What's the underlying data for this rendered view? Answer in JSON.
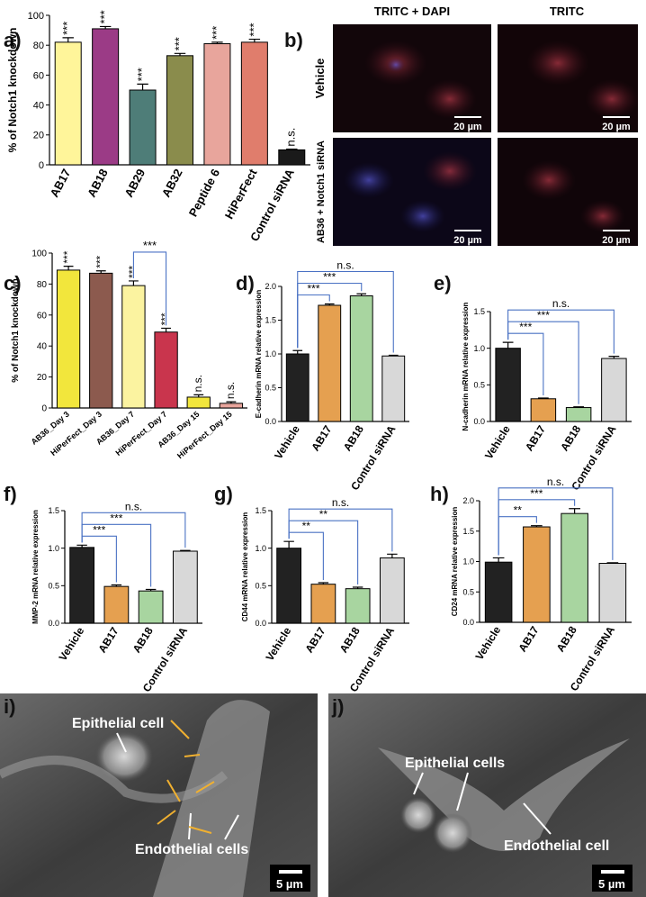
{
  "chart_data": [
    {
      "type": "bar",
      "panel": "a)",
      "ylabel": "% of Notch1 knockdown",
      "categories": [
        "AB17",
        "AB18",
        "AB29",
        "AB32",
        "Peptide 6",
        "HiPerFect",
        "Control siRNA"
      ],
      "values": [
        82,
        91,
        50,
        73,
        81,
        82,
        10
      ],
      "errors": [
        3,
        1.5,
        4,
        1.5,
        1,
        2,
        0.5
      ],
      "colors": [
        "#fff59a",
        "#9b3b86",
        "#4e7d78",
        "#8a8c4c",
        "#e8a59c",
        "#e07d6c",
        "#1a1a1a"
      ],
      "significance": [
        "***",
        "***",
        "***",
        "***",
        "***",
        "***",
        "n.s."
      ],
      "ylim": [
        0,
        100
      ],
      "yticks": [
        0,
        20,
        40,
        60,
        80,
        100
      ]
    },
    {
      "type": "bar",
      "panel": "c)",
      "ylabel": "% of Notch1 knockdown",
      "categories": [
        "AB36_Day 3",
        "HiPerFect_Day 3",
        "AB36_Day 7",
        "HiPerFect_Day 7",
        "AB36_Day 15",
        "HiPerFect_Day 15"
      ],
      "values": [
        89,
        87,
        79,
        49,
        7,
        3
      ],
      "errors": [
        2.5,
        1.5,
        3,
        2.5,
        1.5,
        1
      ],
      "colors": [
        "#f2e63c",
        "#8c5a4e",
        "#fbf3a0",
        "#c9354d",
        "#f2e63c",
        "#e8a59c"
      ],
      "significance": [
        "***",
        "***",
        "***",
        "***",
        "n.s.",
        "n.s."
      ],
      "comparisons": [
        {
          "from": 2,
          "to": 3,
          "label": "***"
        }
      ],
      "bracket_color": "#4a72c4",
      "ylim": [
        0,
        100
      ],
      "yticks": [
        0,
        20,
        40,
        60,
        80,
        100
      ]
    },
    {
      "type": "bar",
      "panel": "d)",
      "ylabel": "E-cadherin mRNA relative expression",
      "categories": [
        "Vehicle",
        "AB17",
        "AB18",
        "Control siRNA"
      ],
      "values": [
        1.0,
        1.72,
        1.86,
        0.97
      ],
      "errors": [
        0.05,
        0.02,
        0.03,
        0.01
      ],
      "colors": [
        "#222222",
        "#e5a050",
        "#a8d5a0",
        "#d8d8d8"
      ],
      "comparisons": [
        {
          "from": 0,
          "to": 1,
          "label": "***"
        },
        {
          "from": 0,
          "to": 2,
          "label": "***"
        },
        {
          "from": 0,
          "to": 3,
          "label": "n.s."
        }
      ],
      "bracket_color": "#4a72c4",
      "ylim": [
        0,
        2
      ],
      "yticks": [
        {
          "value": 0,
          "label": "0.0"
        },
        {
          "value": 0.5,
          "label": "0.5"
        },
        {
          "value": 1,
          "label": "1.0"
        },
        {
          "value": 1.5,
          "label": "1.5"
        },
        {
          "value": 2,
          "label": "2.0"
        }
      ]
    },
    {
      "type": "bar",
      "panel": "e)",
      "ylabel": "N-cadherin mRNA relative expression",
      "categories": [
        "Vehicle",
        "AB17",
        "AB18",
        "Control siRNA"
      ],
      "values": [
        1.0,
        0.31,
        0.19,
        0.86
      ],
      "errors": [
        0.08,
        0.01,
        0.01,
        0.03
      ],
      "colors": [
        "#222222",
        "#e5a050",
        "#a8d5a0",
        "#d8d8d8"
      ],
      "comparisons": [
        {
          "from": 0,
          "to": 1,
          "label": "***"
        },
        {
          "from": 0,
          "to": 2,
          "label": "***"
        },
        {
          "from": 0,
          "to": 3,
          "label": "n.s."
        }
      ],
      "bracket_color": "#4a72c4",
      "ylim": [
        0,
        1.5
      ],
      "yticks": [
        {
          "value": 0,
          "label": "0.0"
        },
        {
          "value": 0.5,
          "label": "0.5"
        },
        {
          "value": 1,
          "label": "1.0"
        },
        {
          "value": 1.5,
          "label": "1.5"
        }
      ]
    },
    {
      "type": "bar",
      "panel": "f)",
      "ylabel": "MMP-2 mRNA relative expression",
      "categories": [
        "Vehicle",
        "AB17",
        "AB18",
        "Control siRNA"
      ],
      "values": [
        1.01,
        0.49,
        0.43,
        0.96
      ],
      "errors": [
        0.03,
        0.02,
        0.02,
        0.01
      ],
      "colors": [
        "#222222",
        "#e5a050",
        "#a8d5a0",
        "#d8d8d8"
      ],
      "comparisons": [
        {
          "from": 0,
          "to": 1,
          "label": "***"
        },
        {
          "from": 0,
          "to": 2,
          "label": "***"
        },
        {
          "from": 0,
          "to": 3,
          "label": "n.s."
        }
      ],
      "bracket_color": "#4a72c4",
      "ylim": [
        0,
        1.5
      ],
      "yticks": [
        {
          "value": 0,
          "label": "0.0"
        },
        {
          "value": 0.5,
          "label": "0.5"
        },
        {
          "value": 1,
          "label": "1.0"
        },
        {
          "value": 1.5,
          "label": "1.5"
        }
      ]
    },
    {
      "type": "bar",
      "panel": "g)",
      "ylabel": "CD44 mRNA relative expression",
      "categories": [
        "Vehicle",
        "AB17",
        "AB18",
        "Control siRNA"
      ],
      "values": [
        1.0,
        0.52,
        0.46,
        0.87
      ],
      "errors": [
        0.09,
        0.02,
        0.02,
        0.05
      ],
      "colors": [
        "#222222",
        "#e5a050",
        "#a8d5a0",
        "#d8d8d8"
      ],
      "comparisons": [
        {
          "from": 0,
          "to": 1,
          "label": "**"
        },
        {
          "from": 0,
          "to": 2,
          "label": "**"
        },
        {
          "from": 0,
          "to": 3,
          "label": "n.s."
        }
      ],
      "bracket_color": "#4a72c4",
      "ylim": [
        0,
        1.5
      ],
      "yticks": [
        {
          "value": 0,
          "label": "0.0"
        },
        {
          "value": 0.5,
          "label": "0.5"
        },
        {
          "value": 1,
          "label": "1.0"
        },
        {
          "value": 1.5,
          "label": "1.5"
        }
      ]
    },
    {
      "type": "bar",
      "panel": "h)",
      "ylabel": "CD24 mRNA relative expression",
      "categories": [
        "Vehicle",
        "AB17",
        "AB18",
        "Control siRNA"
      ],
      "values": [
        0.99,
        1.57,
        1.79,
        0.97
      ],
      "errors": [
        0.07,
        0.02,
        0.08,
        0.01
      ],
      "colors": [
        "#222222",
        "#e5a050",
        "#a8d5a0",
        "#d8d8d8"
      ],
      "comparisons": [
        {
          "from": 0,
          "to": 1,
          "label": "**"
        },
        {
          "from": 0,
          "to": 2,
          "label": "***"
        },
        {
          "from": 0,
          "to": 3,
          "label": "n.s."
        }
      ],
      "bracket_color": "#4a72c4",
      "ylim": [
        0,
        2
      ],
      "yticks": [
        {
          "value": 0,
          "label": "0.0"
        },
        {
          "value": 0.5,
          "label": "0.5"
        },
        {
          "value": 1,
          "label": "1.0"
        },
        {
          "value": 1.5,
          "label": "1.5"
        },
        {
          "value": 2,
          "label": "2.0"
        }
      ]
    }
  ],
  "micrographs": {
    "panel": "b)",
    "columns": [
      "TRITC + DAPI",
      "TRITC"
    ],
    "rows": [
      "Vehicle",
      "AB36 + Notch1 siRNA"
    ],
    "scale_bar": "20 µm"
  },
  "sem": [
    {
      "panel": "i)",
      "labels": [
        "Epithelial cell",
        "Endothelial cells"
      ],
      "scale_bar": "5 µm"
    },
    {
      "panel": "j)",
      "labels": [
        "Epithelial cells",
        "Endothelial cell"
      ],
      "scale_bar": "5 µm"
    }
  ]
}
